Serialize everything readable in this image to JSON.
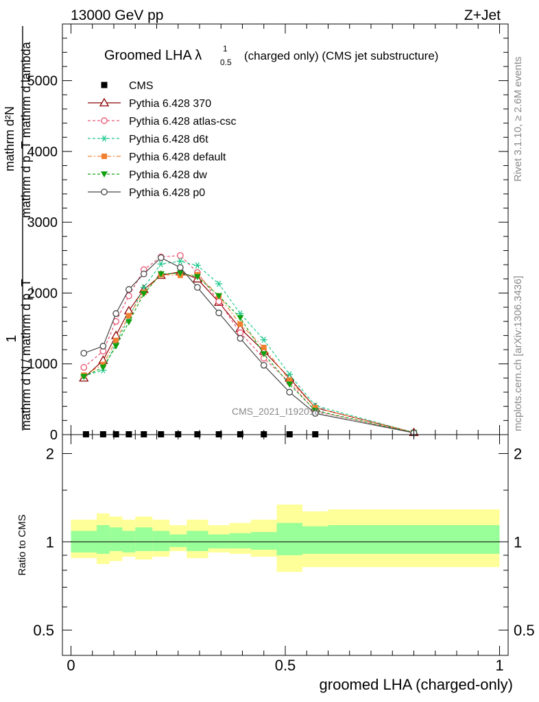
{
  "header": {
    "energy": "13000 GeV pp",
    "process": "Z+Jet",
    "rivet": "Rivet 3.1.10, ≥ 2.6M events",
    "mcplots": "mcplots.cern.ch [arXiv:1306.3436]",
    "watermark": "CMS_2021_I1920187"
  },
  "chart_data": [
    {
      "type": "line",
      "title": "Groomed LHA λ",
      "title_sup": "1",
      "title_sub": "0.5",
      "title_rest": "(charged only) (CMS jet substructure)",
      "ylabel_numerator": "mathrm d²N",
      "ylabel_numerator_2": "mathrm d p_T mathrm d lambda",
      "ylabel_fraction_one": "1",
      "ylabel_denominator": "mathrm d N / mathrm d p_T",
      "ylim": [
        0,
        5800
      ],
      "yticks": [
        0,
        1000,
        2000,
        3000,
        4000,
        5000
      ],
      "yticklabels": [
        "0",
        "1000",
        "2000",
        "3000",
        "4000",
        "5000"
      ],
      "xlim": [
        -0.02,
        1.02
      ],
      "legend_position": "top-left",
      "series": [
        {
          "name": "CMS",
          "color": "#000000",
          "marker": "square",
          "x": [
            0.035,
            0.075,
            0.105,
            0.135,
            0.17,
            0.21,
            0.25,
            0.295,
            0.345,
            0.395,
            0.45,
            0.51,
            0.57
          ],
          "y": [
            5,
            5,
            5,
            5,
            5,
            5,
            5,
            5,
            5,
            5,
            5,
            5,
            5
          ]
        },
        {
          "name": "Pythia 6.428 370",
          "color": "#8b0000",
          "marker": "triangle-open",
          "dash": "none",
          "x": [
            0.03,
            0.075,
            0.105,
            0.135,
            0.17,
            0.21,
            0.255,
            0.295,
            0.345,
            0.395,
            0.45,
            0.51,
            0.57,
            0.8
          ],
          "y": [
            800,
            1050,
            1400,
            1750,
            2050,
            2250,
            2300,
            2200,
            1870,
            1500,
            1180,
            800,
            380,
            30
          ]
        },
        {
          "name": "Pythia 6.428 atlas-csc",
          "color": "#e8506e",
          "marker": "circle-open",
          "dash": "4,3",
          "x": [
            0.03,
            0.075,
            0.105,
            0.135,
            0.17,
            0.21,
            0.255,
            0.295,
            0.345,
            0.395,
            0.45,
            0.51,
            0.57,
            0.8
          ],
          "y": [
            950,
            1180,
            1600,
            1960,
            2330,
            2510,
            2530,
            2290,
            1880,
            1440,
            1080,
            740,
            330,
            25
          ]
        },
        {
          "name": "Pythia 6.428 d6t",
          "color": "#1ec88c",
          "marker": "star",
          "dash": "4,3",
          "x": [
            0.03,
            0.075,
            0.105,
            0.135,
            0.17,
            0.21,
            0.255,
            0.295,
            0.345,
            0.395,
            0.45,
            0.51,
            0.57,
            0.8
          ],
          "y": [
            830,
            910,
            1290,
            1650,
            2080,
            2410,
            2450,
            2390,
            2130,
            1710,
            1340,
            850,
            410,
            30
          ]
        },
        {
          "name": "Pythia 6.428 default",
          "color": "#f08030",
          "marker": "square-filled",
          "dash": "6,3,2,3",
          "x": [
            0.03,
            0.075,
            0.105,
            0.135,
            0.17,
            0.21,
            0.255,
            0.295,
            0.345,
            0.395,
            0.45,
            0.51,
            0.57,
            0.8
          ],
          "y": [
            840,
            990,
            1330,
            1680,
            2010,
            2260,
            2250,
            2260,
            1960,
            1560,
            1230,
            770,
            380,
            30
          ]
        },
        {
          "name": "Pythia 6.428 dw",
          "color": "#10a010",
          "marker": "triangle-down-filled",
          "dash": "4,3",
          "x": [
            0.03,
            0.075,
            0.105,
            0.135,
            0.17,
            0.21,
            0.255,
            0.295,
            0.345,
            0.395,
            0.45,
            0.51,
            0.57,
            0.8
          ],
          "y": [
            820,
            950,
            1250,
            1590,
            1990,
            2270,
            2280,
            2230,
            1960,
            1650,
            1140,
            710,
            340,
            25
          ]
        },
        {
          "name": "Pythia 6.428 p0",
          "color": "#444444",
          "marker": "circle-open",
          "dash": "none",
          "x": [
            0.03,
            0.075,
            0.105,
            0.135,
            0.17,
            0.21,
            0.255,
            0.295,
            0.345,
            0.395,
            0.45,
            0.51,
            0.57,
            0.8
          ],
          "y": [
            1150,
            1250,
            1710,
            2050,
            2270,
            2500,
            2360,
            2080,
            1720,
            1360,
            980,
            600,
            300,
            25
          ]
        }
      ]
    },
    {
      "type": "area",
      "ylabel": "Ratio to CMS",
      "xlabel": "groomed LHA (charged-only)",
      "ylim": [
        0.41,
        2.32
      ],
      "yticks": [
        0.5,
        1,
        2
      ],
      "yticklabels": [
        "0.5",
        "1",
        "2"
      ],
      "xticks": [
        0,
        0.5,
        1
      ],
      "xticklabels": [
        "0",
        "0.5",
        "1"
      ],
      "xlim": [
        -0.02,
        1.02
      ],
      "band_colors": {
        "outer": "#ffff99",
        "inner": "#99ff99"
      },
      "bins": [
        0.0,
        0.06,
        0.09,
        0.12,
        0.15,
        0.19,
        0.23,
        0.27,
        0.32,
        0.37,
        0.42,
        0.48,
        0.54,
        0.6,
        1.0
      ],
      "outer_up": [
        1.19,
        1.25,
        1.22,
        1.19,
        1.22,
        1.19,
        1.14,
        1.19,
        1.14,
        1.16,
        1.19,
        1.34,
        1.27,
        1.29
      ],
      "outer_down": [
        0.88,
        0.84,
        0.86,
        0.89,
        0.87,
        0.89,
        0.93,
        0.88,
        0.92,
        0.91,
        0.89,
        0.79,
        0.82,
        0.82
      ],
      "inner_up": [
        1.09,
        1.14,
        1.12,
        1.09,
        1.12,
        1.09,
        1.06,
        1.09,
        1.06,
        1.07,
        1.08,
        1.16,
        1.13,
        1.14
      ],
      "inner_down": [
        0.92,
        0.91,
        0.93,
        0.92,
        0.93,
        0.93,
        0.96,
        0.93,
        0.95,
        0.95,
        0.94,
        0.9,
        0.91,
        0.91
      ],
      "reference": 1
    }
  ]
}
